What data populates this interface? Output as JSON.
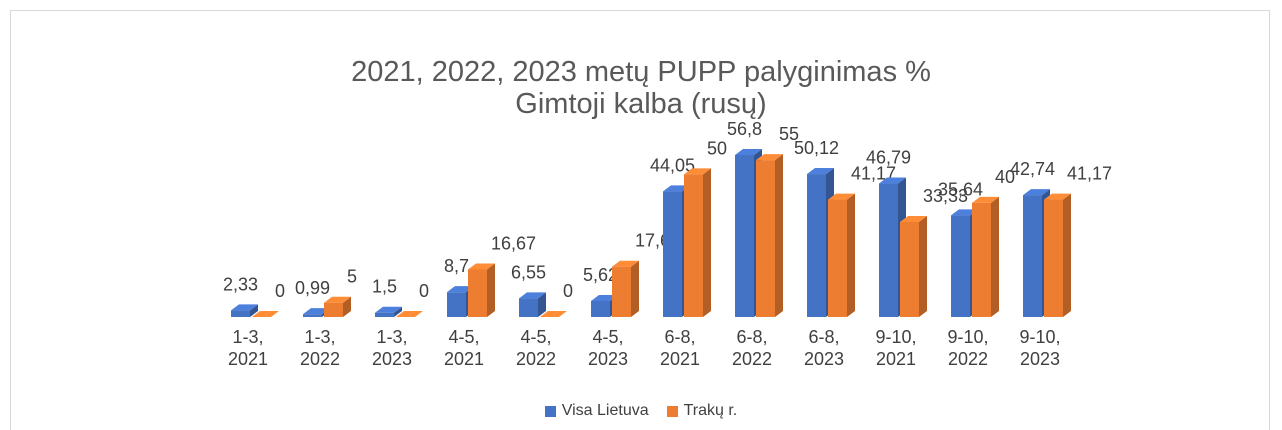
{
  "chart_data": {
    "type": "bar3d",
    "title": "2021, 2022, 2023 metų PUPP palyginimas %",
    "subtitle": "Gimtoji kalba (rusų)",
    "categories": [
      "1-3, 2021",
      "1-3, 2022",
      "1-3, 2023",
      "4-5, 2021",
      "4-5, 2022",
      "4-5, 2023",
      "6-8, 2021",
      "6-8, 2022",
      "6-8, 2023",
      "9-10, 2021",
      "9-10, 2022",
      "9-10, 2023"
    ],
    "series": [
      {
        "name": "Visa Lietuva",
        "color": "#4472c4",
        "values": [
          2.33,
          0.99,
          1.5,
          8.7,
          6.55,
          5.62,
          44.05,
          56.8,
          50.12,
          46.79,
          35.64,
          42.74
        ],
        "value_labels": [
          "2,33",
          "0,99",
          "1,5",
          "8,7",
          "6,55",
          "5,62",
          "44,05",
          "56,8",
          "50,12",
          "46,79",
          "35,64",
          "42,74"
        ]
      },
      {
        "name": "Trakų r.",
        "color": "#ed7d31",
        "values": [
          0,
          5,
          0,
          16.67,
          0,
          17.64,
          50,
          55,
          41.17,
          33.33,
          40,
          41.17
        ],
        "value_labels": [
          "0",
          "5",
          "0",
          "16,67",
          "0",
          "17,64",
          "50",
          "55",
          "41,17",
          "33,33",
          "40",
          "41,17"
        ]
      }
    ],
    "legend": "bottom"
  }
}
